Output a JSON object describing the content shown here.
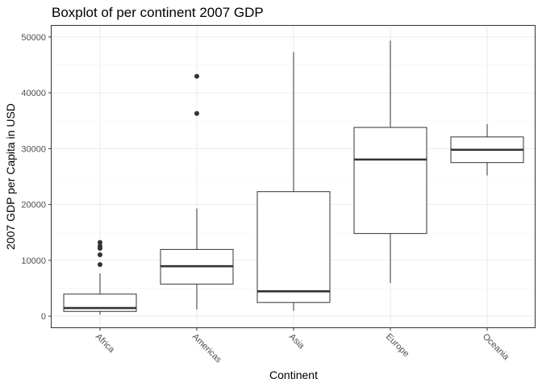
{
  "chart_data": {
    "type": "boxplot",
    "title": "Boxplot of per continent 2007 GDP",
    "xlabel": "Continent",
    "ylabel": "2007 GDP per Capita in USD",
    "ylim": [
      -2000,
      52000
    ],
    "yticks": [
      0,
      10000,
      20000,
      30000,
      40000,
      50000
    ],
    "ytick_labels": [
      "0",
      "10000",
      "20000",
      "30000",
      "40000",
      "50000"
    ],
    "grid": true,
    "categories": [
      "Africa",
      "Americas",
      "Asia",
      "Europe",
      "Oceania"
    ],
    "boxes": [
      {
        "category": "Africa",
        "min": 280,
        "q1": 850,
        "median": 1450,
        "q3": 3950,
        "max": 7650,
        "outliers": [
          9250,
          11000,
          12150,
          12550,
          13200
        ]
      },
      {
        "category": "Americas",
        "min": 1200,
        "q1": 5750,
        "median": 8950,
        "q3": 11950,
        "max": 19300,
        "outliers": [
          36300,
          42950
        ]
      },
      {
        "category": "Asia",
        "min": 950,
        "q1": 2450,
        "median": 4450,
        "q3": 22300,
        "max": 47300,
        "outliers": []
      },
      {
        "category": "Europe",
        "min": 5950,
        "q1": 14800,
        "median": 28050,
        "q3": 33800,
        "max": 49350,
        "outliers": []
      },
      {
        "category": "Oceania",
        "min": 25200,
        "q1": 27500,
        "median": 29800,
        "q3": 32100,
        "max": 34400,
        "outliers": []
      }
    ]
  }
}
